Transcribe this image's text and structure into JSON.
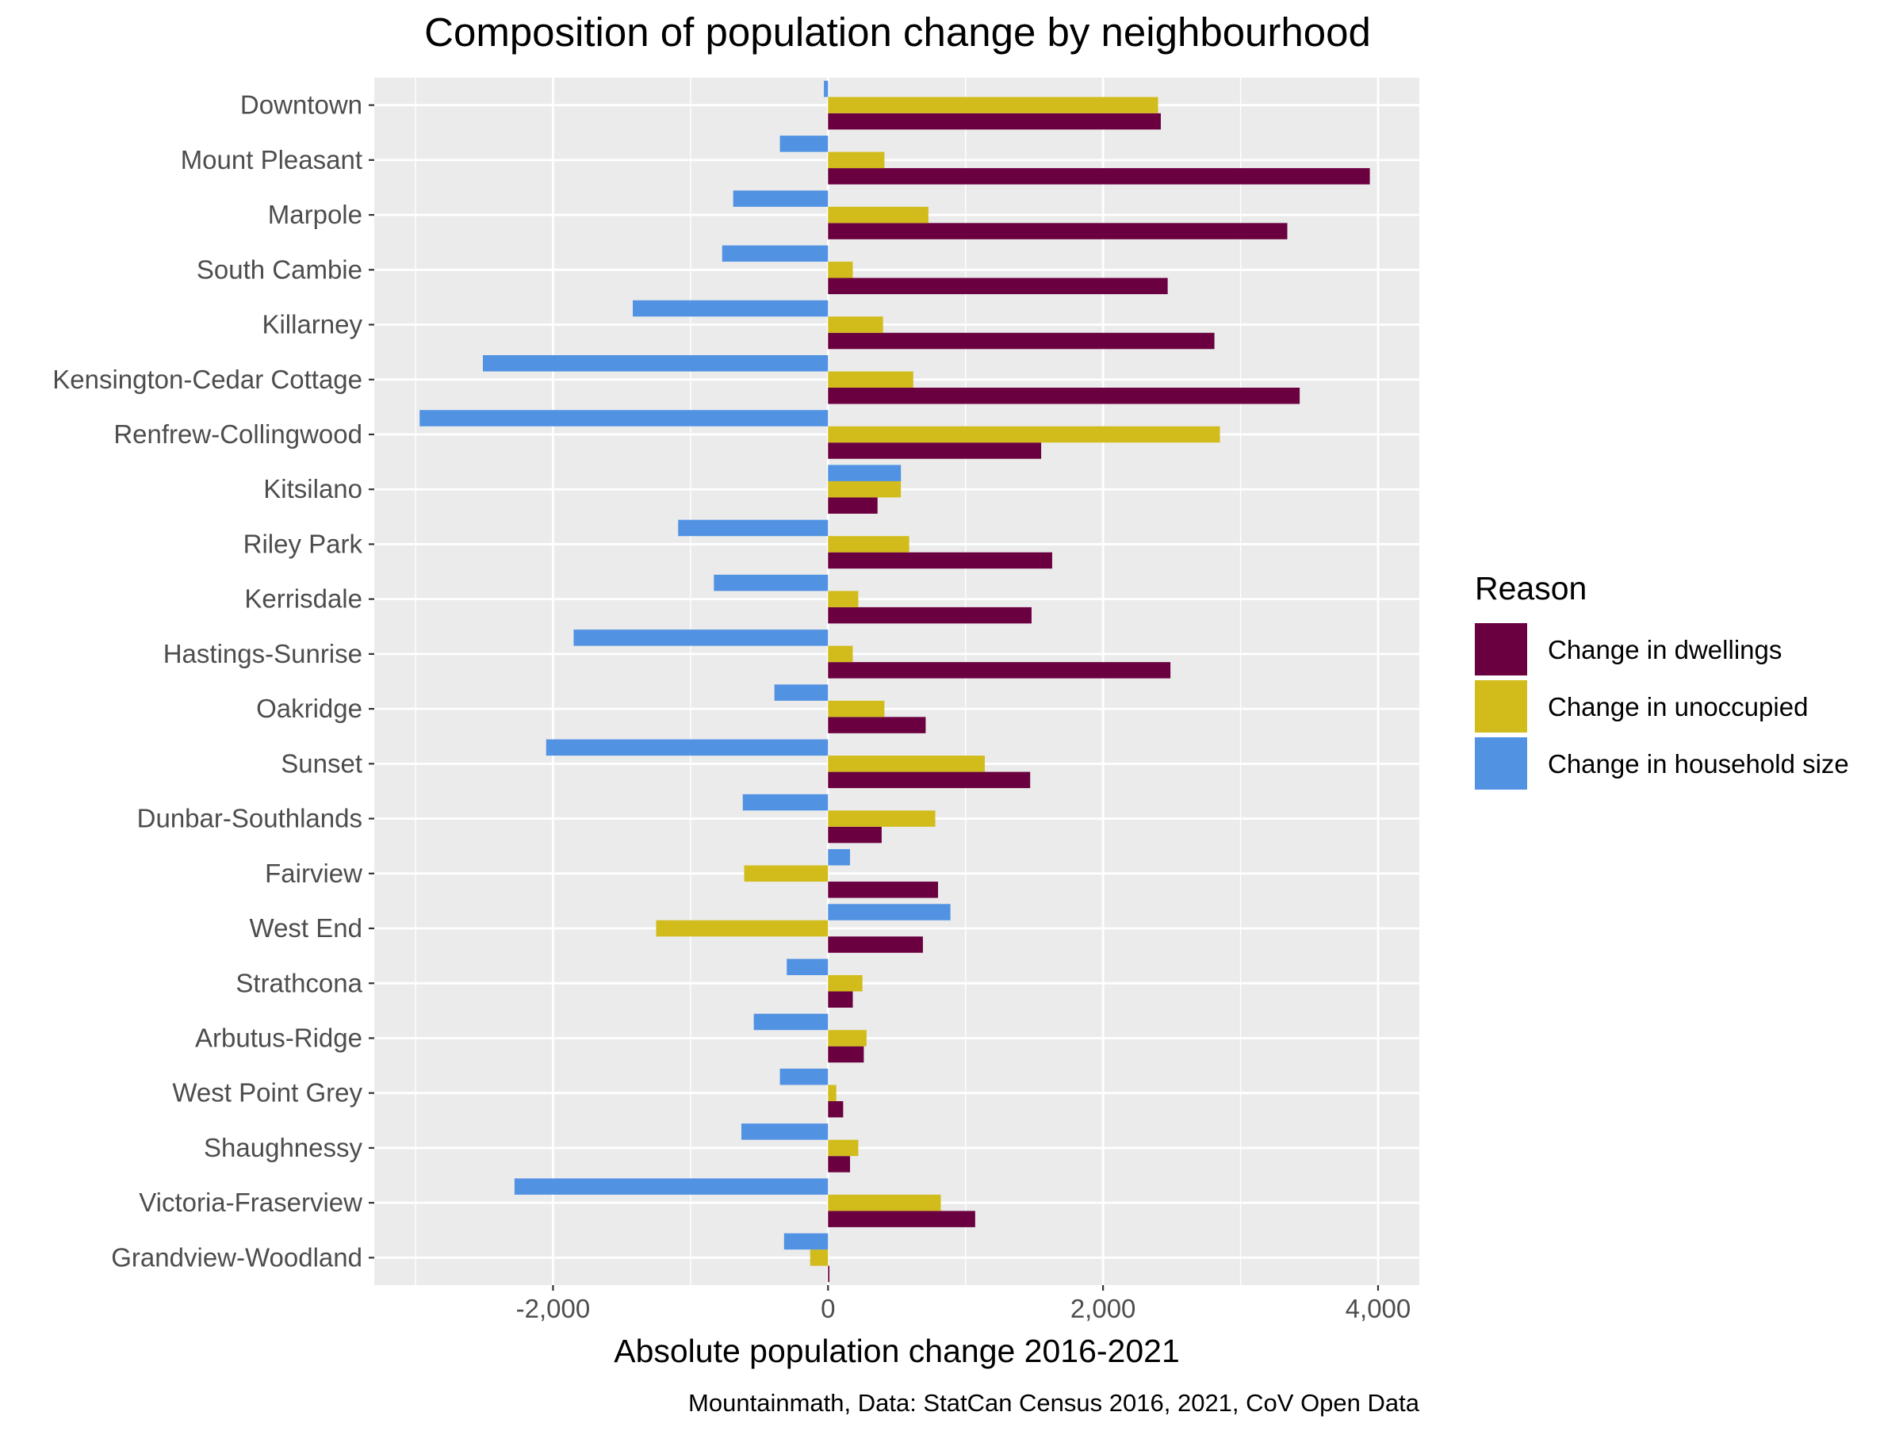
{
  "chart_data": {
    "type": "bar",
    "orientation": "horizontal",
    "title": "Composition of population change by neighbourhood",
    "xlabel": "Absolute population change 2016-2021",
    "ylabel": "",
    "caption": "Mountainmath, Data: StatCan Census 2016, 2021, CoV Open Data",
    "xlim": [
      -3300,
      4300
    ],
    "x_ticks": [
      -2000,
      0,
      2000,
      4000
    ],
    "x_tick_labels": [
      "-2,000",
      "0",
      "2,000",
      "4,000"
    ],
    "grid": true,
    "legend": {
      "title": "Reason",
      "position": "right"
    },
    "categories": [
      "Downtown",
      "Mount Pleasant",
      "Marpole",
      "South Cambie",
      "Killarney",
      "Kensington-Cedar Cottage",
      "Renfrew-Collingwood",
      "Kitsilano",
      "Riley Park",
      "Kerrisdale",
      "Hastings-Sunrise",
      "Oakridge",
      "Sunset",
      "Dunbar-Southlands",
      "Fairview",
      "West End",
      "Strathcona",
      "Arbutus-Ridge",
      "West Point Grey",
      "Shaughnessy",
      "Victoria-Fraserview",
      "Grandview-Woodland"
    ],
    "series": [
      {
        "name": "Change in dwellings",
        "color": "#6b0040",
        "values": [
          2420,
          3940,
          3340,
          2470,
          2810,
          3430,
          1550,
          360,
          1630,
          1480,
          2490,
          710,
          1470,
          390,
          800,
          690,
          180,
          260,
          110,
          160,
          1070,
          10
        ]
      },
      {
        "name": "Change in unoccupied",
        "color": "#d1bc1c",
        "values": [
          2400,
          410,
          730,
          180,
          400,
          620,
          2850,
          530,
          590,
          220,
          180,
          410,
          1140,
          780,
          -610,
          -1250,
          250,
          280,
          60,
          220,
          820,
          -130
        ]
      },
      {
        "name": "Change in household size",
        "color": "#5192e3",
        "values": [
          -30,
          -350,
          -690,
          -770,
          -1420,
          -2510,
          -2970,
          530,
          -1090,
          -830,
          -1850,
          -390,
          -2050,
          -620,
          160,
          890,
          -300,
          -540,
          -350,
          -630,
          -2280,
          -320
        ]
      }
    ]
  }
}
